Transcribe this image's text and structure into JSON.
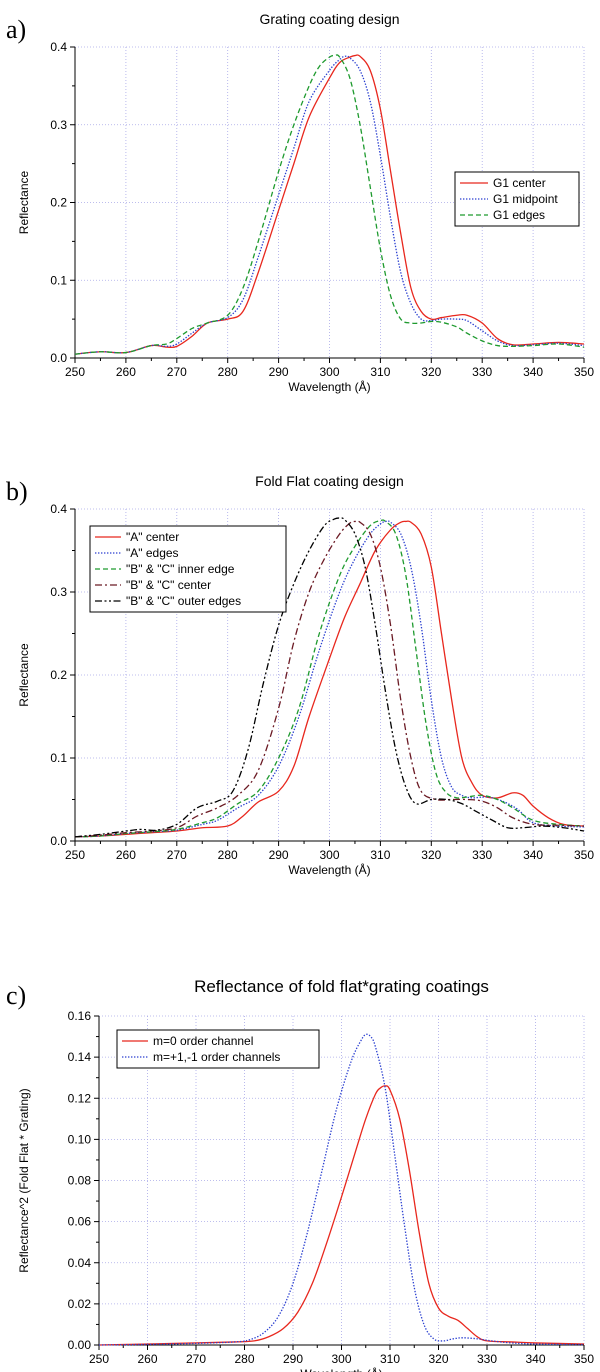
{
  "chart_data": [
    {
      "panel_label": "a)",
      "type": "line",
      "title": "Grating coating design",
      "xlabel": "Wavelength (Å)",
      "ylabel": "Reflectance",
      "xlim": [
        250,
        350
      ],
      "ylim": [
        0,
        0.4
      ],
      "xticks": [
        250,
        260,
        270,
        280,
        290,
        300,
        310,
        320,
        330,
        340,
        350
      ],
      "xtick_labels": [
        "250",
        "260",
        "270",
        "280",
        "290",
        "300",
        "310",
        "320",
        "330",
        "340",
        "350"
      ],
      "yticks": [
        0,
        0.1,
        0.2,
        0.3,
        0.4
      ],
      "ytick_labels": [
        "0.0",
        "0.1",
        "0.2",
        "0.3",
        "0.4"
      ],
      "grid": true,
      "legend_position": "right",
      "series": [
        {
          "name": "G1 center",
          "color": "#e8271d",
          "dash": "solid",
          "x": [
            250,
            255,
            260,
            265,
            268,
            270,
            273,
            276,
            280,
            283,
            286,
            290,
            293,
            296,
            300,
            302,
            304,
            305,
            306,
            308,
            310,
            312,
            314,
            316,
            318,
            320,
            322,
            325,
            327,
            330,
            333,
            336,
            340,
            345,
            350
          ],
          "y": [
            0.005,
            0.008,
            0.007,
            0.016,
            0.014,
            0.015,
            0.028,
            0.045,
            0.05,
            0.06,
            0.11,
            0.19,
            0.25,
            0.31,
            0.36,
            0.38,
            0.387,
            0.389,
            0.388,
            0.37,
            0.32,
            0.24,
            0.16,
            0.09,
            0.06,
            0.05,
            0.052,
            0.055,
            0.055,
            0.045,
            0.025,
            0.017,
            0.018,
            0.02,
            0.018
          ]
        },
        {
          "name": "G1 midpoint",
          "color": "#2a3fd0",
          "dash": "dotted",
          "x": [
            250,
            255,
            260,
            265,
            268,
            270,
            273,
            276,
            280,
            283,
            286,
            290,
            293,
            296,
            300,
            302,
            303,
            304,
            306,
            308,
            310,
            312,
            314,
            316,
            318,
            320,
            322,
            325,
            327,
            330,
            333,
            336,
            340,
            345,
            350
          ],
          "y": [
            0.005,
            0.008,
            0.007,
            0.016,
            0.015,
            0.018,
            0.032,
            0.045,
            0.052,
            0.075,
            0.13,
            0.21,
            0.27,
            0.33,
            0.37,
            0.384,
            0.388,
            0.386,
            0.37,
            0.33,
            0.26,
            0.18,
            0.11,
            0.07,
            0.05,
            0.048,
            0.05,
            0.05,
            0.048,
            0.035,
            0.022,
            0.016,
            0.017,
            0.019,
            0.016
          ]
        },
        {
          "name": "G1 edges",
          "color": "#1e9a2e",
          "dash": "dashed",
          "x": [
            250,
            255,
            260,
            265,
            268,
            270,
            273,
            276,
            280,
            283,
            286,
            290,
            293,
            296,
            298,
            300,
            301,
            302,
            304,
            306,
            308,
            310,
            312,
            314,
            316,
            318,
            320,
            322,
            325,
            327,
            330,
            333,
            336,
            340,
            345,
            350
          ],
          "y": [
            0.005,
            0.008,
            0.007,
            0.016,
            0.018,
            0.025,
            0.038,
            0.045,
            0.055,
            0.09,
            0.15,
            0.24,
            0.3,
            0.35,
            0.375,
            0.387,
            0.389,
            0.387,
            0.36,
            0.3,
            0.22,
            0.14,
            0.08,
            0.05,
            0.045,
            0.045,
            0.047,
            0.046,
            0.04,
            0.032,
            0.022,
            0.016,
            0.015,
            0.016,
            0.018,
            0.014
          ]
        }
      ]
    },
    {
      "panel_label": "b)",
      "type": "line",
      "title": "Fold Flat coating design",
      "xlabel": "Wavelength (Å)",
      "ylabel": "Reflectance",
      "xlim": [
        250,
        350
      ],
      "ylim": [
        0,
        0.4
      ],
      "xticks": [
        250,
        260,
        270,
        280,
        290,
        300,
        310,
        320,
        330,
        340,
        350
      ],
      "xtick_labels": [
        "250",
        "260",
        "270",
        "280",
        "290",
        "300",
        "310",
        "320",
        "330",
        "340",
        "350"
      ],
      "yticks": [
        0,
        0.1,
        0.2,
        0.3,
        0.4
      ],
      "ytick_labels": [
        "0.0",
        "0.1",
        "0.2",
        "0.3",
        "0.4"
      ],
      "grid": true,
      "legend_position": "top-left",
      "series": [
        {
          "name": "\"A\" center",
          "color": "#e8271d",
          "dash": "solid",
          "x": [
            250,
            255,
            260,
            265,
            270,
            275,
            280,
            283,
            286,
            290,
            293,
            296,
            300,
            303,
            306,
            309,
            312,
            314,
            315,
            316,
            318,
            320,
            322,
            324,
            326,
            328,
            330,
            333,
            336,
            338,
            340,
            343,
            346,
            350
          ],
          "y": [
            0.005,
            0.006,
            0.008,
            0.01,
            0.012,
            0.016,
            0.018,
            0.03,
            0.047,
            0.06,
            0.09,
            0.15,
            0.22,
            0.27,
            0.31,
            0.35,
            0.375,
            0.384,
            0.385,
            0.384,
            0.37,
            0.33,
            0.25,
            0.17,
            0.1,
            0.07,
            0.055,
            0.052,
            0.058,
            0.055,
            0.042,
            0.028,
            0.02,
            0.018
          ]
        },
        {
          "name": "\"A\" edges",
          "color": "#2a3fd0",
          "dash": "dotted",
          "x": [
            250,
            255,
            260,
            265,
            270,
            275,
            278,
            282,
            286,
            290,
            294,
            298,
            302,
            305,
            308,
            310,
            311,
            312,
            314,
            316,
            318,
            320,
            322,
            324,
            326,
            328,
            331,
            334,
            337,
            340,
            345,
            350
          ],
          "y": [
            0.005,
            0.006,
            0.009,
            0.011,
            0.013,
            0.02,
            0.025,
            0.04,
            0.055,
            0.09,
            0.15,
            0.23,
            0.3,
            0.34,
            0.37,
            0.382,
            0.385,
            0.384,
            0.37,
            0.33,
            0.26,
            0.17,
            0.1,
            0.065,
            0.055,
            0.052,
            0.053,
            0.048,
            0.038,
            0.022,
            0.018,
            0.017
          ]
        },
        {
          "name": "\"B\" & \"C\" inner edge",
          "color": "#1e9a2e",
          "dash": "dashed",
          "x": [
            250,
            255,
            260,
            265,
            270,
            275,
            278,
            282,
            286,
            290,
            294,
            298,
            302,
            305,
            308,
            310,
            311,
            313,
            315,
            317,
            319,
            321,
            323,
            325,
            327,
            330,
            333,
            336,
            340,
            345,
            350
          ],
          "y": [
            0.005,
            0.006,
            0.009,
            0.011,
            0.014,
            0.022,
            0.028,
            0.045,
            0.06,
            0.1,
            0.16,
            0.25,
            0.32,
            0.355,
            0.38,
            0.386,
            0.385,
            0.37,
            0.32,
            0.23,
            0.14,
            0.08,
            0.058,
            0.052,
            0.053,
            0.055,
            0.05,
            0.04,
            0.025,
            0.02,
            0.018
          ]
        },
        {
          "name": "\"B\" & \"C\" center",
          "color": "#6b1a24",
          "dash": "dashdot",
          "x": [
            250,
            255,
            260,
            265,
            270,
            274,
            278,
            282,
            286,
            290,
            293,
            296,
            299,
            302,
            304,
            305,
            306,
            308,
            310,
            312,
            314,
            316,
            318,
            321,
            324,
            327,
            330,
            333,
            336,
            340,
            345,
            350
          ],
          "y": [
            0.005,
            0.007,
            0.01,
            0.012,
            0.016,
            0.03,
            0.04,
            0.055,
            0.085,
            0.16,
            0.24,
            0.3,
            0.34,
            0.37,
            0.383,
            0.385,
            0.384,
            0.37,
            0.33,
            0.26,
            0.17,
            0.1,
            0.06,
            0.05,
            0.05,
            0.05,
            0.048,
            0.04,
            0.028,
            0.02,
            0.019,
            0.018
          ]
        },
        {
          "name": "\"B\" & \"C\" outer edges",
          "color": "#000000",
          "dash": "dashdotdot",
          "x": [
            250,
            255,
            260,
            263,
            266,
            270,
            274,
            278,
            281,
            284,
            287,
            290,
            293,
            296,
            299,
            301,
            302,
            303,
            305,
            307,
            309,
            311,
            313,
            315,
            317,
            320,
            323,
            326,
            329,
            332,
            335,
            338,
            342,
            346,
            350
          ],
          "y": [
            0.005,
            0.008,
            0.012,
            0.014,
            0.013,
            0.02,
            0.04,
            0.048,
            0.06,
            0.11,
            0.19,
            0.26,
            0.31,
            0.35,
            0.38,
            0.388,
            0.389,
            0.387,
            0.37,
            0.33,
            0.26,
            0.18,
            0.11,
            0.065,
            0.045,
            0.05,
            0.05,
            0.045,
            0.035,
            0.025,
            0.016,
            0.016,
            0.018,
            0.016,
            0.012
          ]
        }
      ]
    },
    {
      "panel_label": "c)",
      "type": "line",
      "title": "Reflectance of fold flat*grating coatings",
      "xlabel": "Wavelength (Å)",
      "ylabel": "Reflectance^2 (Fold Flat * Grating)",
      "xlim": [
        250,
        350
      ],
      "ylim": [
        0,
        0.16
      ],
      "xticks": [
        250,
        260,
        270,
        280,
        290,
        300,
        310,
        320,
        330,
        340,
        350
      ],
      "xtick_labels": [
        "250",
        "260",
        "270",
        "280",
        "290",
        "300",
        "310",
        "320",
        "330",
        "340",
        "350"
      ],
      "yticks": [
        0,
        0.02,
        0.04,
        0.06,
        0.08,
        0.1,
        0.12,
        0.14,
        0.16
      ],
      "ytick_labels": [
        "0.00",
        "0.02",
        "0.04",
        "0.06",
        "0.08",
        "0.10",
        "0.12",
        "0.14",
        "0.16"
      ],
      "grid": true,
      "legend_position": "top-left",
      "series": [
        {
          "name": "m=0 order channel",
          "color": "#e8271d",
          "dash": "solid",
          "x": [
            250,
            260,
            270,
            278,
            282,
            285,
            288,
            291,
            294,
            297,
            300,
            303,
            305,
            307,
            308,
            309,
            310,
            312,
            314,
            316,
            318,
            320,
            322,
            324,
            326,
            328,
            330,
            335,
            340,
            350
          ],
          "y": [
            0.0,
            0.0005,
            0.001,
            0.0015,
            0.002,
            0.004,
            0.008,
            0.016,
            0.03,
            0.05,
            0.072,
            0.095,
            0.11,
            0.122,
            0.125,
            0.126,
            0.124,
            0.11,
            0.085,
            0.055,
            0.03,
            0.018,
            0.014,
            0.012,
            0.008,
            0.004,
            0.002,
            0.0015,
            0.001,
            0.0005
          ]
        },
        {
          "name": "m=+1,-1 order channels",
          "color": "#2a3fd0",
          "dash": "dotted",
          "x": [
            250,
            260,
            270,
            278,
            281,
            284,
            287,
            290,
            293,
            296,
            299,
            302,
            304,
            305,
            306,
            307,
            309,
            311,
            313,
            315,
            317,
            319,
            321,
            323,
            325,
            328,
            331,
            335,
            340,
            350
          ],
          "y": [
            0.0,
            0.0003,
            0.0008,
            0.0015,
            0.0025,
            0.006,
            0.014,
            0.03,
            0.055,
            0.085,
            0.115,
            0.138,
            0.148,
            0.151,
            0.15,
            0.145,
            0.125,
            0.092,
            0.058,
            0.028,
            0.01,
            0.003,
            0.002,
            0.003,
            0.0035,
            0.003,
            0.002,
            0.001,
            0.0005,
            0.0002
          ]
        }
      ]
    }
  ]
}
